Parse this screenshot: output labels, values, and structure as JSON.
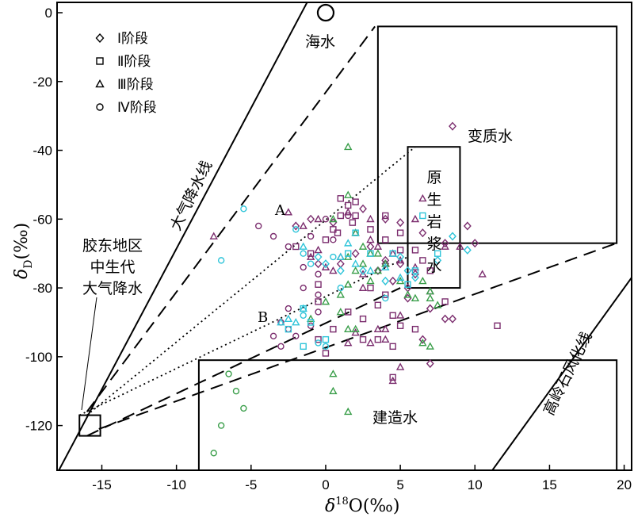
{
  "chart_data": {
    "type": "scatter",
    "xlabel": "δ18O(‰)",
    "ylabel": "δD(‰)",
    "xlim": [
      -18,
      20.5
    ],
    "ylim": [
      -133,
      3
    ],
    "xticks": [
      -15,
      -10,
      -5,
      0,
      5,
      10,
      15,
      20
    ],
    "xtick_labels": [
      "-15",
      "-10",
      "-5",
      "0",
      "5",
      "10",
      "15",
      "20"
    ],
    "yticks": [
      0,
      -20,
      -40,
      -60,
      -80,
      -100,
      -120
    ],
    "ytick_labels": [
      "0",
      "-20",
      "-40",
      "-60",
      "-80",
      "-100",
      "-120"
    ],
    "legend": {
      "position": "top-left",
      "entries": [
        {
          "marker": "diamond",
          "label": "Ⅰ阶段"
        },
        {
          "marker": "square",
          "label": "Ⅱ阶段"
        },
        {
          "marker": "triangle",
          "label": "Ⅲ阶段"
        },
        {
          "marker": "circle",
          "label": "Ⅳ阶段"
        }
      ]
    },
    "colors": {
      "purple": "#7b2d6e",
      "cyan": "#2ec4d9",
      "green": "#3a9e4a"
    },
    "labels": {
      "seawater": "海水",
      "metamorphic": "变质水",
      "magmatic": "原生岩浆水",
      "formation": "建造水",
      "meteoric_line": "大气降水线",
      "kaolinite_line": "高岭石风化线",
      "jiaodong": "胶东地区\n中生代\n大气降水",
      "A": "A",
      "B": "B"
    },
    "regions": {
      "seawater_point": [
        0,
        0
      ],
      "metamorphic_box": {
        "x": [
          3.5,
          19.5
        ],
        "y": [
          -67,
          -4
        ]
      },
      "magmatic_box": {
        "x": [
          5.5,
          9
        ],
        "y": [
          -80,
          -39
        ]
      },
      "formation_box": {
        "x": [
          -8.5,
          19.5
        ],
        "y": [
          -133,
          -101
        ]
      },
      "jiaodong_box": {
        "x": [
          -16.5,
          -15.1
        ],
        "y": [
          -123,
          -117
        ]
      }
    },
    "lines": {
      "meteoric_water_line": [
        [
          -18,
          -134
        ],
        [
          -1,
          5
        ]
      ],
      "kaolinite_weathering_line": [
        [
          11,
          -134
        ],
        [
          20.5,
          -77
        ]
      ],
      "dashed_upper_1": [
        [
          -16,
          -116
        ],
        [
          3.3,
          -4
        ]
      ],
      "dashed_upper_2": [
        [
          -15.2,
          -121
        ],
        [
          19.5,
          -67
        ]
      ],
      "dashed_lower": [
        [
          -16,
          -123
        ],
        [
          5,
          -80
        ]
      ],
      "dotted_A": [
        [
          -16,
          -117
        ],
        [
          6,
          -39
        ]
      ],
      "dotted_B": [
        [
          -16.5,
          -117
        ],
        [
          5.5,
          -71
        ]
      ]
    },
    "series": [
      {
        "marker": "diamond",
        "color": "purple",
        "points": [
          [
            8.5,
            -33
          ],
          [
            9.5,
            -62
          ],
          [
            10,
            -67
          ],
          [
            6.5,
            -64
          ],
          [
            8,
            -67
          ],
          [
            4,
            -60
          ],
          [
            5,
            -61
          ],
          [
            2.5,
            -57
          ],
          [
            3,
            -68
          ],
          [
            3.5,
            -75
          ],
          [
            4,
            -72
          ],
          [
            5,
            -73
          ],
          [
            6,
            -76
          ],
          [
            5.5,
            -83
          ],
          [
            7,
            -86
          ],
          [
            8,
            -89
          ],
          [
            8.5,
            -89
          ],
          [
            7,
            -102
          ],
          [
            6.5,
            -95
          ],
          [
            4,
            -73
          ],
          [
            2,
            -70
          ],
          [
            -2,
            -62
          ],
          [
            -1,
            -60
          ],
          [
            0.5,
            -61
          ],
          [
            1,
            -73
          ],
          [
            -0.5,
            -73
          ],
          [
            4.5,
            -78
          ],
          [
            5.5,
            -80
          ]
        ]
      },
      {
        "marker": "square",
        "color": "purple",
        "points": [
          [
            11.5,
            -91
          ],
          [
            4.5,
            -106
          ],
          [
            2.5,
            -95
          ],
          [
            3.5,
            -85
          ],
          [
            4,
            -82
          ],
          [
            3,
            -80
          ],
          [
            4.5,
            -88
          ],
          [
            5,
            -91
          ],
          [
            6,
            -92
          ],
          [
            3,
            -63
          ],
          [
            2,
            -59
          ],
          [
            1.5,
            -56
          ],
          [
            0.5,
            -63
          ],
          [
            0,
            -66
          ],
          [
            -1,
            -70
          ],
          [
            -2,
            -68
          ],
          [
            -0.5,
            -79
          ],
          [
            -0.5,
            -84
          ],
          [
            1.5,
            -87
          ],
          [
            2.5,
            -89
          ],
          [
            3.5,
            -95
          ],
          [
            4.5,
            -97
          ],
          [
            7,
            -75
          ],
          [
            4,
            -66
          ],
          [
            5,
            -69
          ],
          [
            6,
            -69
          ],
          [
            6.5,
            -72
          ],
          [
            8,
            -84
          ],
          [
            1,
            -54
          ],
          [
            2,
            -55
          ],
          [
            4,
            -59
          ],
          [
            5,
            -64
          ],
          [
            0.5,
            -92
          ],
          [
            0,
            -99
          ],
          [
            -0.5,
            -95
          ],
          [
            1,
            -59
          ],
          [
            1.8,
            -61
          ],
          [
            0.8,
            -64
          ]
        ]
      },
      {
        "marker": "triangle",
        "color": "purple",
        "points": [
          [
            -7.5,
            -65
          ],
          [
            -2.5,
            -58
          ],
          [
            -1.5,
            -62
          ],
          [
            -0.5,
            -60
          ],
          [
            1.5,
            -58
          ],
          [
            2,
            -64
          ],
          [
            3,
            -66
          ],
          [
            3.5,
            -68
          ],
          [
            4.5,
            -70
          ],
          [
            5,
            -72
          ],
          [
            6,
            -74
          ],
          [
            7,
            -81
          ],
          [
            10.5,
            -76
          ],
          [
            9,
            -68
          ],
          [
            6.5,
            -54
          ],
          [
            6,
            -60
          ],
          [
            8,
            -68
          ],
          [
            5,
            -88
          ],
          [
            4,
            -92
          ],
          [
            3,
            -96
          ],
          [
            3.5,
            -92
          ],
          [
            4,
            -95
          ],
          [
            2,
            -93
          ],
          [
            1.5,
            -96
          ],
          [
            5,
            -103
          ],
          [
            4.5,
            -107
          ],
          [
            2.5,
            -80
          ],
          [
            0.5,
            -75
          ],
          [
            -0.5,
            -69
          ],
          [
            -1,
            -71
          ],
          [
            0,
            -74
          ],
          [
            1,
            -71
          ],
          [
            3,
            -60
          ],
          [
            2.5,
            -76
          ]
        ]
      },
      {
        "marker": "triangle",
        "color": "green",
        "points": [
          [
            1.5,
            -39
          ],
          [
            0.5,
            -60
          ],
          [
            1.5,
            -53
          ],
          [
            2,
            -64
          ],
          [
            2.5,
            -68
          ],
          [
            3,
            -70
          ],
          [
            4,
            -73
          ],
          [
            2,
            -75
          ],
          [
            1.5,
            -79
          ],
          [
            1,
            -82
          ],
          [
            1,
            -87
          ],
          [
            3,
            -78
          ],
          [
            3.5,
            -75
          ],
          [
            5,
            -78
          ],
          [
            6,
            -83
          ],
          [
            7,
            -83
          ],
          [
            7.5,
            -85
          ],
          [
            7,
            -81
          ],
          [
            1.5,
            -92
          ],
          [
            2,
            -92
          ],
          [
            0.5,
            -105
          ],
          [
            0.5,
            -110
          ],
          [
            1.5,
            -116
          ],
          [
            6.5,
            -96
          ],
          [
            7,
            -97
          ],
          [
            -1,
            -89
          ],
          [
            0,
            -84
          ],
          [
            1.5,
            -71
          ],
          [
            2.5,
            -73
          ],
          [
            3.5,
            -70
          ],
          [
            5.5,
            -82
          ],
          [
            6.5,
            -78
          ]
        ]
      },
      {
        "marker": "circle",
        "color": "green",
        "points": [
          [
            -6.5,
            -105
          ],
          [
            -6,
            -110
          ],
          [
            -5.5,
            -115
          ],
          [
            -7,
            -120
          ],
          [
            -7.5,
            -128
          ]
        ]
      },
      {
        "marker": "circle",
        "color": "purple",
        "points": [
          [
            -4.5,
            -62
          ],
          [
            -3.5,
            -65
          ],
          [
            -2.5,
            -68
          ],
          [
            -1.5,
            -80
          ],
          [
            -0.5,
            -82
          ],
          [
            -0.5,
            -87
          ],
          [
            -1,
            -91
          ],
          [
            -2,
            -94
          ],
          [
            -3,
            -97
          ],
          [
            -2.5,
            -92
          ],
          [
            0,
            -60
          ],
          [
            -1,
            -65
          ],
          [
            -0.5,
            -76
          ],
          [
            -1.5,
            -74
          ],
          [
            -2.5,
            -86
          ],
          [
            -3,
            -90
          ],
          [
            -3.5,
            -94
          ],
          [
            1.5,
            -59
          ],
          [
            0.5,
            -66
          ]
        ]
      },
      {
        "marker": "circle",
        "color": "cyan",
        "points": [
          [
            -7,
            -72
          ],
          [
            -5.5,
            -57
          ],
          [
            -2,
            -63
          ],
          [
            -1.5,
            -70
          ],
          [
            -1,
            -73
          ],
          [
            0.5,
            -71
          ],
          [
            1,
            -80
          ],
          [
            4,
            -83
          ],
          [
            -1.5,
            -88
          ],
          [
            -0.5,
            -96
          ],
          [
            0,
            -97
          ]
        ]
      },
      {
        "marker": "diamond",
        "color": "cyan",
        "points": [
          [
            7.5,
            -72
          ],
          [
            9.5,
            -69
          ],
          [
            8.5,
            -65
          ],
          [
            5,
            -71
          ],
          [
            5.5,
            -75
          ],
          [
            6,
            -77
          ],
          [
            -0.5,
            -71
          ],
          [
            1,
            -75
          ],
          [
            2.5,
            -75
          ],
          [
            4,
            -78
          ],
          [
            0,
            -73
          ]
        ]
      },
      {
        "marker": "square",
        "color": "cyan",
        "points": [
          [
            -1.5,
            -97
          ],
          [
            -2.5,
            -92
          ],
          [
            0,
            -95
          ],
          [
            -1,
            -90
          ],
          [
            -1.5,
            -86
          ],
          [
            1.5,
            -70
          ],
          [
            2,
            -64
          ],
          [
            3,
            -70
          ],
          [
            4.5,
            -70
          ],
          [
            5.5,
            -79
          ],
          [
            6,
            -75
          ],
          [
            7.5,
            -70
          ],
          [
            6.5,
            -59
          ]
        ]
      },
      {
        "marker": "triangle",
        "color": "cyan",
        "points": [
          [
            -2.5,
            -89
          ],
          [
            -1.5,
            -86
          ],
          [
            -2,
            -90
          ],
          [
            1,
            -71
          ],
          [
            1.5,
            -67
          ],
          [
            2,
            -73
          ],
          [
            3,
            -75
          ],
          [
            4,
            -74
          ],
          [
            5,
            -77
          ],
          [
            -1.5,
            -68
          ],
          [
            -3,
            -90
          ]
        ]
      }
    ]
  }
}
